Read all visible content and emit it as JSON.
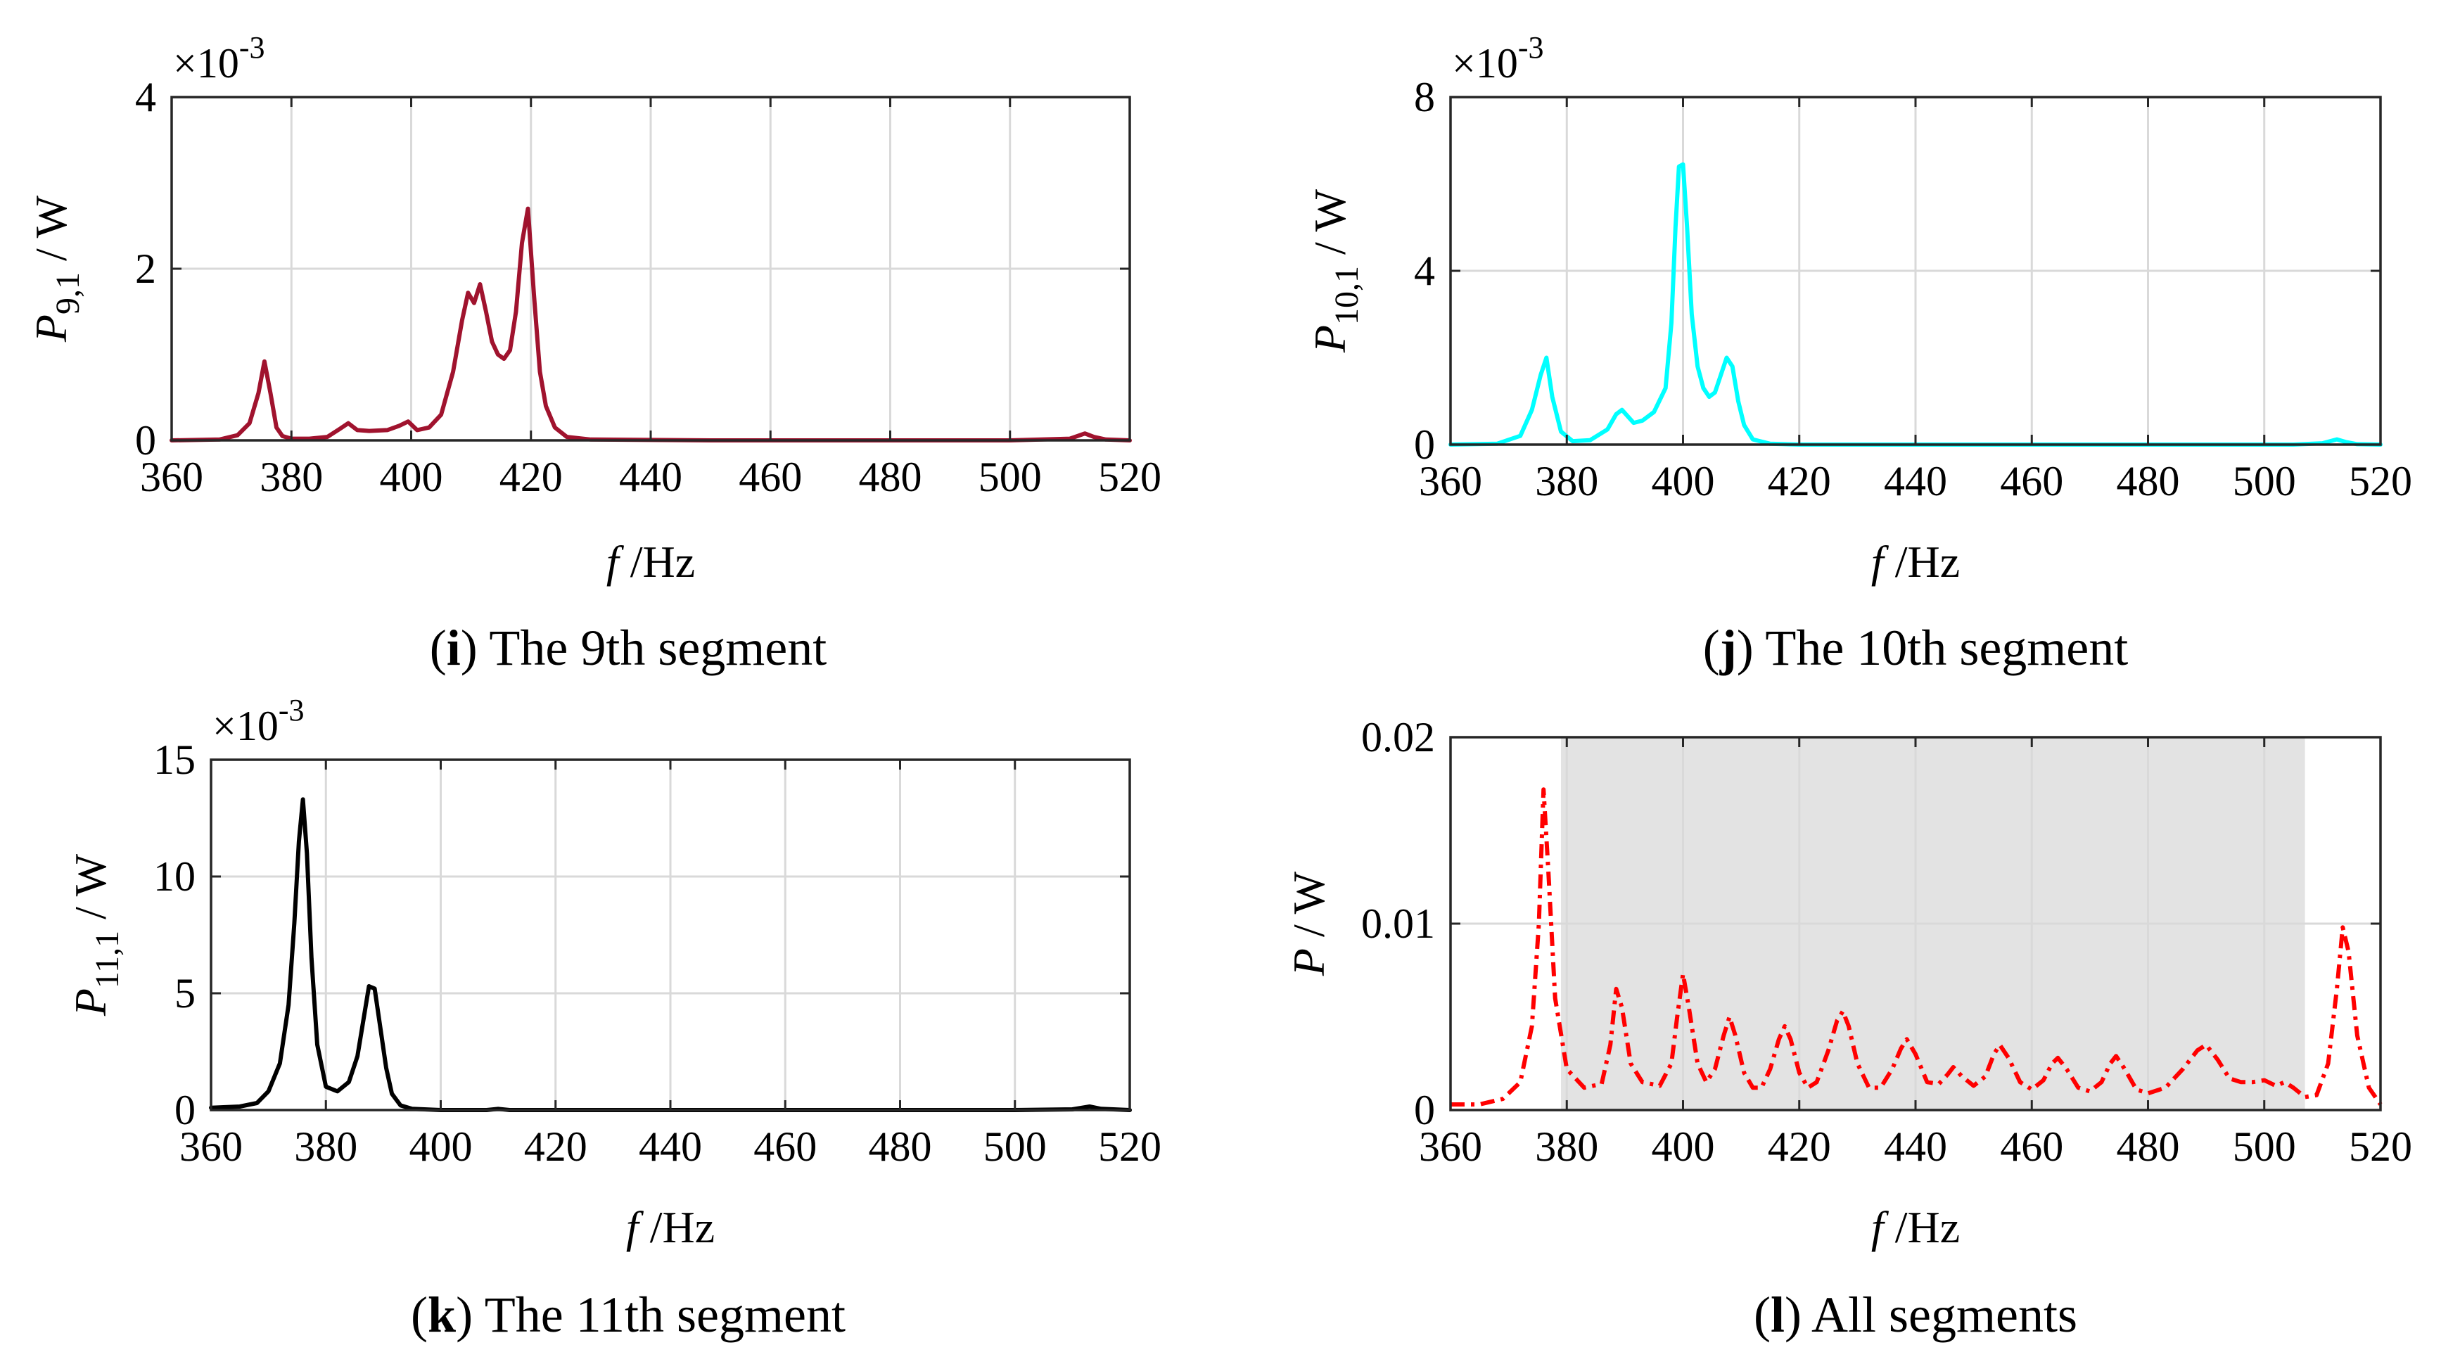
{
  "chart_data": [
    {
      "type": "line",
      "panel": "i",
      "caption_letter": "i",
      "caption_text": " The 9th segment",
      "ylabel_main": "P",
      "ylabel_sub": "9,1",
      "ylabel_unit": " / W",
      "xlabel_italic": "f",
      "xlabel_unit": " /Hz",
      "multiplier_base": "×10",
      "multiplier_exp": "-3",
      "xlim": [
        360,
        520
      ],
      "ylim": [
        0,
        4
      ],
      "xticks": [
        360,
        380,
        400,
        420,
        440,
        460,
        480,
        500,
        520
      ],
      "yticks": [
        0,
        2,
        4
      ],
      "color": "#a0132e",
      "dash": "",
      "shaded": null,
      "x": [
        360,
        368,
        371,
        373,
        374.5,
        375.5,
        376.5,
        377.5,
        378.5,
        380,
        383,
        386,
        388,
        389.5,
        391,
        393,
        396,
        398,
        399.5,
        401,
        403,
        405,
        407,
        408.5,
        409.5,
        410.5,
        411.5,
        412.5,
        413.5,
        414.5,
        415.5,
        416.5,
        417.5,
        418.5,
        419.5,
        420.5,
        421.5,
        422.5,
        424,
        426,
        430,
        450,
        480,
        500,
        510,
        512.5,
        514,
        516,
        520
      ],
      "y": [
        0.0,
        0.01,
        0.06,
        0.2,
        0.55,
        0.92,
        0.55,
        0.15,
        0.05,
        0.02,
        0.02,
        0.04,
        0.13,
        0.2,
        0.12,
        0.11,
        0.12,
        0.17,
        0.22,
        0.12,
        0.15,
        0.3,
        0.8,
        1.4,
        1.72,
        1.6,
        1.82,
        1.5,
        1.15,
        1.0,
        0.95,
        1.05,
        1.5,
        2.3,
        2.7,
        1.7,
        0.8,
        0.4,
        0.15,
        0.04,
        0.01,
        0.0,
        0.0,
        0.0,
        0.02,
        0.08,
        0.04,
        0.01,
        0.0
      ]
    },
    {
      "type": "line",
      "panel": "j",
      "caption_letter": "j",
      "caption_text": " The 10th segment",
      "ylabel_main": "P",
      "ylabel_sub": "10,1",
      "ylabel_unit": " / W",
      "xlabel_italic": "f",
      "xlabel_unit": " /Hz",
      "multiplier_base": "×10",
      "multiplier_exp": "-3",
      "xlim": [
        360,
        520
      ],
      "ylim": [
        0,
        8
      ],
      "xticks": [
        360,
        380,
        400,
        420,
        440,
        460,
        480,
        500,
        520
      ],
      "yticks": [
        0,
        4,
        8
      ],
      "color": "#00ffff",
      "dash": "",
      "shaded": null,
      "x": [
        360,
        368,
        372,
        374,
        375.5,
        376.5,
        377.5,
        379,
        381,
        384,
        387,
        388.5,
        389.5,
        390.5,
        391.5,
        393,
        395,
        397,
        398,
        398.7,
        399.3,
        400,
        400.7,
        401.5,
        402.5,
        403.5,
        404.5,
        405.5,
        406.5,
        407.5,
        408.5,
        409.5,
        410.5,
        412,
        415,
        420,
        440,
        480,
        505,
        510,
        512.5,
        514,
        516,
        520
      ],
      "y": [
        0.0,
        0.02,
        0.2,
        0.8,
        1.6,
        2.0,
        1.1,
        0.3,
        0.08,
        0.1,
        0.35,
        0.7,
        0.8,
        0.65,
        0.5,
        0.55,
        0.75,
        1.3,
        2.8,
        5.0,
        6.4,
        6.45,
        5.0,
        3.0,
        1.8,
        1.3,
        1.1,
        1.2,
        1.6,
        2.0,
        1.8,
        1.0,
        0.45,
        0.12,
        0.02,
        0.0,
        0.0,
        0.0,
        0.0,
        0.03,
        0.12,
        0.06,
        0.01,
        0.0
      ]
    },
    {
      "type": "line",
      "panel": "k",
      "caption_letter": "k",
      "caption_text": " The 11th segment",
      "ylabel_main": "P",
      "ylabel_sub": "11,1",
      "ylabel_unit": " / W",
      "xlabel_italic": "f",
      "xlabel_unit": " /Hz",
      "multiplier_base": "×10",
      "multiplier_exp": "-3",
      "xlim": [
        360,
        520
      ],
      "ylim": [
        0,
        15
      ],
      "xticks": [
        360,
        380,
        400,
        420,
        440,
        460,
        480,
        500,
        520
      ],
      "yticks": [
        0,
        5,
        10,
        15
      ],
      "color": "#000000",
      "dash": "",
      "shaded": null,
      "x": [
        360,
        365,
        368,
        370,
        372,
        373.5,
        374.5,
        375.3,
        376,
        376.7,
        377.5,
        378.5,
        380,
        382,
        384,
        385.5,
        386.5,
        387.5,
        388.5,
        389.5,
        390.5,
        391.5,
        393,
        395,
        400,
        408,
        410,
        412,
        420,
        500,
        510,
        513,
        515,
        520
      ],
      "y": [
        0.1,
        0.15,
        0.3,
        0.8,
        2.0,
        4.5,
        8.0,
        11.5,
        13.3,
        11.0,
        6.5,
        2.8,
        1.0,
        0.8,
        1.2,
        2.3,
        3.8,
        5.3,
        5.2,
        3.5,
        1.8,
        0.7,
        0.2,
        0.05,
        0.0,
        0.0,
        0.05,
        0.0,
        0.0,
        0.0,
        0.03,
        0.15,
        0.05,
        0.0
      ]
    },
    {
      "type": "line",
      "panel": "l",
      "caption_letter": "l",
      "caption_text": " All segments",
      "ylabel_main": "P",
      "ylabel_sub": "",
      "ylabel_unit": " / W",
      "xlabel_italic": "f",
      "xlabel_unit": " /Hz",
      "multiplier_base": "",
      "multiplier_exp": "",
      "xlim": [
        360,
        520
      ],
      "ylim": [
        0,
        0.02
      ],
      "xticks": [
        360,
        380,
        400,
        420,
        440,
        460,
        480,
        500,
        520
      ],
      "yticks": [
        0,
        0.01,
        0.02
      ],
      "ytick_labels": [
        "0",
        "0.01",
        "0.02"
      ],
      "color": "#ff0000",
      "dash": "20 9 5 9",
      "shaded": {
        "x0": 379,
        "x1": 507,
        "y0": 0,
        "y1": 0.02,
        "color": "#e3e3e3"
      },
      "x": [
        360,
        365,
        369,
        372,
        374,
        375.2,
        376,
        376.8,
        378,
        380,
        383,
        386,
        387.5,
        388.5,
        389.5,
        391,
        393,
        396,
        398,
        399,
        400,
        401,
        402.5,
        404,
        405.5,
        407,
        408,
        409,
        410.5,
        412,
        413.5,
        415,
        416.5,
        417.5,
        418.5,
        420,
        421.5,
        423,
        425,
        426.5,
        427.5,
        428.5,
        430,
        432,
        434,
        436,
        437.5,
        438.5,
        440,
        442,
        444,
        445.5,
        446.5,
        448,
        450,
        452,
        453.5,
        454.5,
        456,
        458,
        460,
        462,
        463.5,
        464.5,
        466,
        468,
        470,
        472,
        473.5,
        474.5,
        476,
        478,
        480,
        483,
        486,
        488.5,
        490,
        492,
        494,
        496,
        498,
        500,
        502,
        503.5,
        505,
        507,
        509,
        511,
        512.5,
        513.5,
        514.5,
        516,
        518,
        520
      ],
      "y": [
        0.0003,
        0.0003,
        0.0006,
        0.0015,
        0.0045,
        0.01,
        0.0172,
        0.013,
        0.006,
        0.0022,
        0.0012,
        0.0014,
        0.0035,
        0.0065,
        0.0055,
        0.0025,
        0.0015,
        0.0013,
        0.0025,
        0.005,
        0.0073,
        0.0055,
        0.0025,
        0.0015,
        0.0022,
        0.004,
        0.005,
        0.004,
        0.002,
        0.0012,
        0.0012,
        0.0022,
        0.0038,
        0.0045,
        0.0038,
        0.002,
        0.0012,
        0.0015,
        0.0032,
        0.0048,
        0.0053,
        0.0045,
        0.0025,
        0.0012,
        0.0012,
        0.0022,
        0.0033,
        0.0038,
        0.003,
        0.0015,
        0.0014,
        0.0019,
        0.0023,
        0.0018,
        0.0013,
        0.0018,
        0.003,
        0.0035,
        0.0028,
        0.0015,
        0.0011,
        0.0016,
        0.0025,
        0.0028,
        0.0022,
        0.0012,
        0.001,
        0.0015,
        0.0025,
        0.0029,
        0.0022,
        0.0011,
        0.0009,
        0.0012,
        0.0022,
        0.0032,
        0.0035,
        0.0027,
        0.0017,
        0.0015,
        0.0015,
        0.0016,
        0.0013,
        0.0015,
        0.0012,
        0.0007,
        0.0008,
        0.0025,
        0.0065,
        0.0098,
        0.0085,
        0.004,
        0.0012,
        0.0003
      ]
    }
  ]
}
